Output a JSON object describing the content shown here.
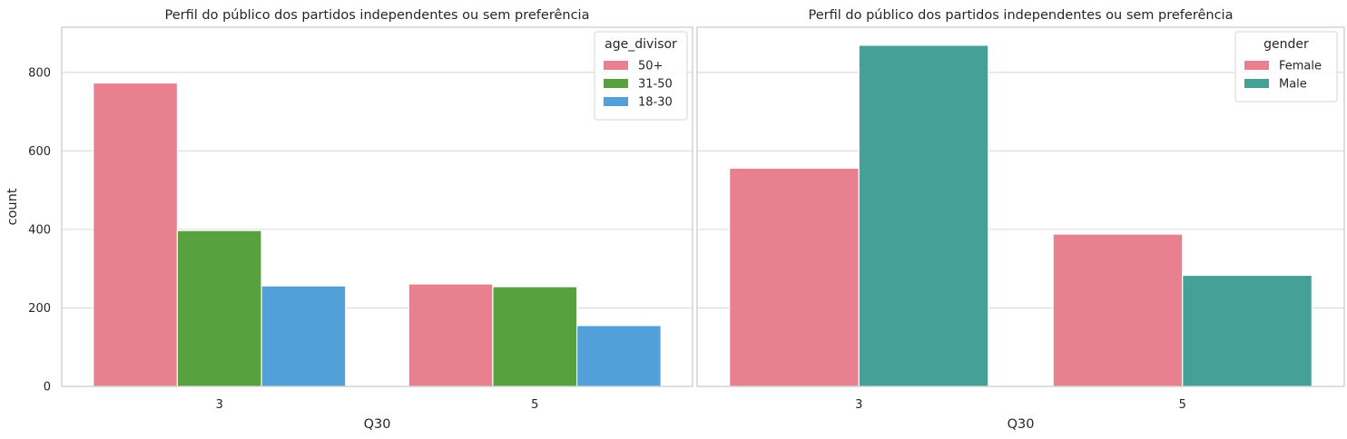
{
  "chart_data": [
    {
      "type": "bar",
      "title": "Perfil do público dos partidos independentes ou sem preferência",
      "xlabel": "Q30",
      "ylabel": "count",
      "categories": [
        "3",
        "5"
      ],
      "ylim": [
        0,
        915
      ],
      "yticks": [
        0,
        200,
        400,
        600,
        800
      ],
      "grid": true,
      "legend": {
        "title": "age_divisor",
        "placement": "top-right"
      },
      "series": [
        {
          "name": "50+",
          "color": "#e8808f",
          "values": [
            773,
            261
          ]
        },
        {
          "name": "31-50",
          "color": "#57a23e",
          "values": [
            397,
            254
          ]
        },
        {
          "name": "18-30",
          "color": "#52a0d9",
          "values": [
            256,
            155
          ]
        }
      ]
    },
    {
      "type": "bar",
      "title": "Perfil do público dos partidos independentes ou sem preferência",
      "xlabel": "Q30",
      "ylabel": "",
      "categories": [
        "3",
        "5"
      ],
      "ylim": [
        0,
        915
      ],
      "yticks": [
        0,
        200,
        400,
        600,
        800
      ],
      "show_ytick_labels": false,
      "grid": true,
      "legend": {
        "title": "gender",
        "placement": "top-right"
      },
      "series": [
        {
          "name": "Female",
          "color": "#e8808f",
          "values": [
            556,
            388
          ]
        },
        {
          "name": "Male",
          "color": "#45a098",
          "values": [
            869,
            283
          ]
        }
      ]
    }
  ]
}
